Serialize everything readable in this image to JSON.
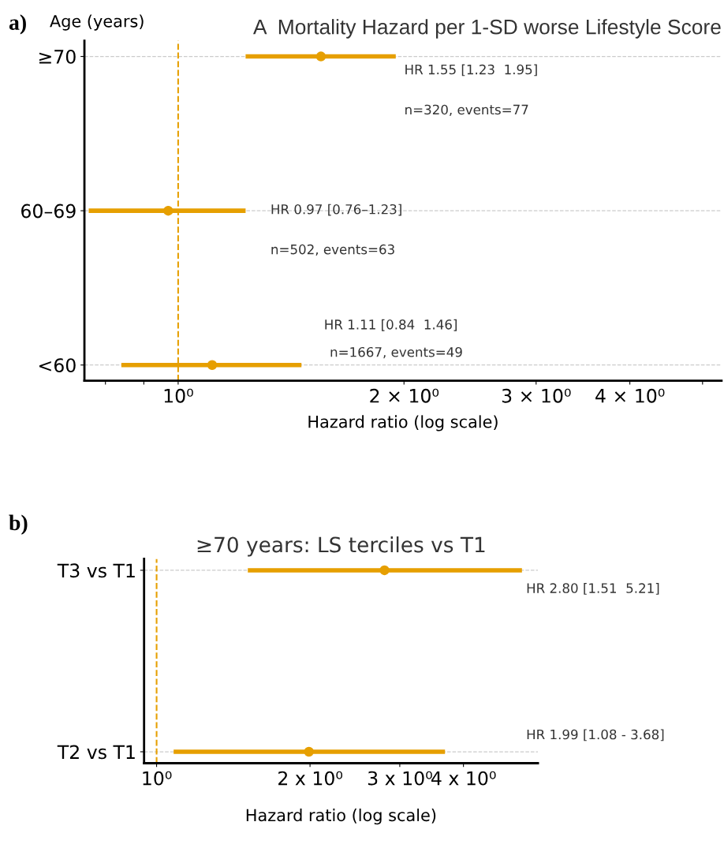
{
  "chart_data": [
    {
      "type": "scatter",
      "orientation": "horizontal",
      "title": "A  Mortality Hazard per 1-SD worse Lifestyle Score",
      "ylabel": "Age (years)",
      "xlabel": "Hazard ratio (log scale)",
      "log": "x",
      "categories": [
        "≥70",
        "60–69",
        "<60"
      ],
      "series": [
        {
          "color": "#e69f00",
          "values": [
            1.55,
            0.97,
            1.11
          ],
          "errors": [
            [
              1.23,
              1.95
            ],
            [
              0.76,
              1.23
            ],
            [
              0.84,
              1.46
            ]
          ]
        }
      ],
      "xlim": [
        0.75,
        5.3
      ],
      "xticks": [
        {
          "value": 0.8,
          "label": null
        },
        {
          "value": 0.9,
          "label": null
        },
        {
          "value": 1,
          "label": "10⁰"
        },
        {
          "value": 2,
          "label": "2 × 10⁰"
        },
        {
          "value": 3,
          "label": "3 × 10⁰"
        },
        {
          "value": 4,
          "label": "4 × 10⁰"
        },
        {
          "value": 5,
          "label": null
        }
      ],
      "ref_lines": [
        {
          "axis": "x",
          "value": 1,
          "color": "#e69f00",
          "line_style": "dashed"
        }
      ],
      "grid": "y",
      "marker": "circle",
      "annotations": [
        "a)",
        "HR 1.55 [1.23  1.95]",
        "n=320, events=77",
        "HR 0.97 [0.76–1.23]",
        "n=502, events=63",
        "HR 1.11 [0.84  1.46]",
        "n=1667, events=49"
      ]
    },
    {
      "type": "scatter",
      "orientation": "horizontal",
      "title": "≥70 years: LS terciles vs T1",
      "xlabel": "Hazard ratio (log scale)",
      "log": "x",
      "categories": [
        "T3 vs T1",
        "T2 vs T1"
      ],
      "series": [
        {
          "color": "#e69f00",
          "values": [
            2.8,
            1.99
          ],
          "errors": [
            [
              1.51,
              5.21
            ],
            [
              1.08,
              3.68
            ]
          ]
        }
      ],
      "xlim": [
        0.945,
        5.6
      ],
      "xticks": [
        {
          "value": 1,
          "label": "10⁰"
        },
        {
          "value": 2,
          "label": "2 x 10⁰"
        },
        {
          "value": 3,
          "label": "3 x 10⁰"
        },
        {
          "value": 4,
          "label": "4 x 10⁰"
        }
      ],
      "ref_lines": [
        {
          "axis": "x",
          "value": 1,
          "color": "#e69f00",
          "line_style": "dashed"
        }
      ],
      "grid": "y",
      "marker": "circle",
      "annotations": [
        "b)",
        "HR 2.80 [1.51  5.21]",
        "HR 1.99 [1.08 - 3.68]"
      ]
    }
  ]
}
